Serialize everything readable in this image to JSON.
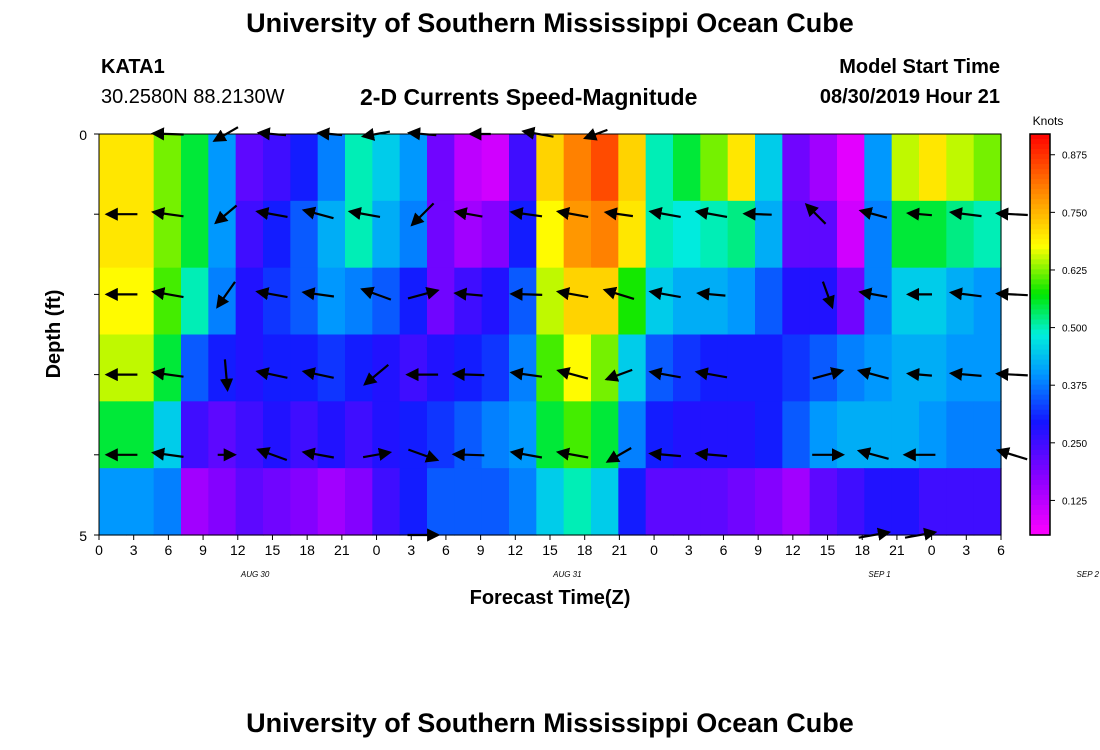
{
  "header": {
    "title": "University of Southern Mississippi Ocean Cube",
    "station": "KATA1",
    "coordinates": "30.2580N 88.2130W",
    "chart_title": "2-D Currents Speed-Magnitude",
    "model_start_label": "Model Start Time",
    "model_start_value": "08/30/2019 Hour 21"
  },
  "footer": {
    "title": "University of Southern Mississippi Ocean Cube"
  },
  "chart_data": {
    "type": "heatmap",
    "title": "2-D Currents Speed-Magnitude",
    "xlabel": "Forecast Time(Z)",
    "ylabel": "Depth (ft)",
    "x_tick_labels": [
      "0",
      "3",
      "6",
      "9",
      "12",
      "15",
      "18",
      "21",
      "0",
      "3",
      "6",
      "9",
      "12",
      "15",
      "18",
      "21",
      "0",
      "3",
      "6",
      "9",
      "12",
      "15",
      "18",
      "21",
      "0",
      "3",
      "6"
    ],
    "date_labels": [
      {
        "label": "AUG 30",
        "tick_index": 4.5
      },
      {
        "label": "AUG 31",
        "tick_index": 13.5
      },
      {
        "label": "SEP 1",
        "tick_index": 22.5
      },
      {
        "label": "SEP 2",
        "tick_index": 28.5
      }
    ],
    "y_tick_labels": [
      "0",
      "5"
    ],
    "y_range": [
      0,
      5
    ],
    "time_range_hours": [
      0,
      78
    ],
    "colorbar": {
      "unit": "Knots",
      "tick_labels": [
        "0.875",
        "0.750",
        "0.625",
        "0.500",
        "0.375",
        "0.250",
        "0.125"
      ],
      "tick_values": [
        0.875,
        0.75,
        0.625,
        0.5,
        0.375,
        0.25,
        0.125
      ],
      "range": [
        0.05,
        0.92
      ]
    },
    "depth_levels": [
      0,
      1,
      2,
      3,
      4,
      5
    ],
    "speed_knots": [
      [
        0.7,
        0.7,
        0.62,
        0.55,
        0.4,
        0.22,
        0.25,
        0.3,
        0.38,
        0.5,
        0.45,
        0.4,
        0.2,
        0.12,
        0.1,
        0.25,
        0.72,
        0.8,
        0.85,
        0.72,
        0.5,
        0.55,
        0.62,
        0.7,
        0.45,
        0.2,
        0.15,
        0.08,
        0.4,
        0.65,
        0.7,
        0.65,
        0.62
      ],
      [
        0.7,
        0.7,
        0.62,
        0.55,
        0.4,
        0.25,
        0.3,
        0.35,
        0.42,
        0.5,
        0.42,
        0.38,
        0.2,
        0.15,
        0.18,
        0.3,
        0.68,
        0.78,
        0.8,
        0.7,
        0.5,
        0.48,
        0.5,
        0.52,
        0.42,
        0.22,
        0.22,
        0.1,
        0.38,
        0.55,
        0.55,
        0.52,
        0.5
      ],
      [
        0.68,
        0.68,
        0.6,
        0.5,
        0.38,
        0.28,
        0.32,
        0.35,
        0.4,
        0.38,
        0.35,
        0.3,
        0.2,
        0.25,
        0.28,
        0.35,
        0.65,
        0.72,
        0.72,
        0.58,
        0.45,
        0.42,
        0.42,
        0.4,
        0.35,
        0.28,
        0.28,
        0.2,
        0.38,
        0.45,
        0.45,
        0.42,
        0.4
      ],
      [
        0.65,
        0.65,
        0.55,
        0.35,
        0.3,
        0.28,
        0.3,
        0.3,
        0.32,
        0.3,
        0.28,
        0.25,
        0.28,
        0.3,
        0.32,
        0.38,
        0.6,
        0.68,
        0.62,
        0.45,
        0.35,
        0.32,
        0.3,
        0.3,
        0.3,
        0.32,
        0.35,
        0.38,
        0.4,
        0.42,
        0.42,
        0.4,
        0.4
      ],
      [
        0.55,
        0.55,
        0.45,
        0.25,
        0.22,
        0.25,
        0.28,
        0.25,
        0.28,
        0.25,
        0.28,
        0.3,
        0.32,
        0.35,
        0.38,
        0.4,
        0.55,
        0.6,
        0.55,
        0.38,
        0.3,
        0.28,
        0.28,
        0.28,
        0.3,
        0.35,
        0.4,
        0.42,
        0.42,
        0.42,
        0.4,
        0.38,
        0.38
      ],
      [
        0.4,
        0.4,
        0.38,
        0.15,
        0.18,
        0.22,
        0.2,
        0.18,
        0.15,
        0.18,
        0.25,
        0.3,
        0.35,
        0.35,
        0.35,
        0.38,
        0.45,
        0.5,
        0.45,
        0.3,
        0.22,
        0.22,
        0.22,
        0.2,
        0.18,
        0.15,
        0.22,
        0.25,
        0.28,
        0.28,
        0.25,
        0.25,
        0.25
      ]
    ],
    "vectors": [
      {
        "depth": 0,
        "hour": 6,
        "dir_deg": 178,
        "len": 0.9
      },
      {
        "depth": 0,
        "hour": 11,
        "dir_deg": 210,
        "len": 0.8
      },
      {
        "depth": 0,
        "hour": 15,
        "dir_deg": 175,
        "len": 0.8
      },
      {
        "depth": 0,
        "hour": 20,
        "dir_deg": 175,
        "len": 0.7
      },
      {
        "depth": 0,
        "hour": 24,
        "dir_deg": 190,
        "len": 0.8
      },
      {
        "depth": 0,
        "hour": 28,
        "dir_deg": 175,
        "len": 0.8
      },
      {
        "depth": 0,
        "hour": 33,
        "dir_deg": 180,
        "len": 0.6
      },
      {
        "depth": 0,
        "hour": 38,
        "dir_deg": 170,
        "len": 0.9
      },
      {
        "depth": 0,
        "hour": 43,
        "dir_deg": 200,
        "len": 0.7
      },
      {
        "depth": 1,
        "hour": 2,
        "dir_deg": 180,
        "len": 0.9
      },
      {
        "depth": 1,
        "hour": 6,
        "dir_deg": 172,
        "len": 0.9
      },
      {
        "depth": 1,
        "hour": 11,
        "dir_deg": 220,
        "len": 0.8
      },
      {
        "depth": 1,
        "hour": 15,
        "dir_deg": 170,
        "len": 0.9
      },
      {
        "depth": 1,
        "hour": 19,
        "dir_deg": 165,
        "len": 0.9
      },
      {
        "depth": 1,
        "hour": 23,
        "dir_deg": 170,
        "len": 0.9
      },
      {
        "depth": 1,
        "hour": 28,
        "dir_deg": 225,
        "len": 0.9
      },
      {
        "depth": 1,
        "hour": 32,
        "dir_deg": 170,
        "len": 0.8
      },
      {
        "depth": 1,
        "hour": 37,
        "dir_deg": 172,
        "len": 0.9
      },
      {
        "depth": 1,
        "hour": 41,
        "dir_deg": 170,
        "len": 0.9
      },
      {
        "depth": 1,
        "hour": 45,
        "dir_deg": 172,
        "len": 0.8
      },
      {
        "depth": 1,
        "hour": 49,
        "dir_deg": 170,
        "len": 0.9
      },
      {
        "depth": 1,
        "hour": 53,
        "dir_deg": 170,
        "len": 0.9
      },
      {
        "depth": 1,
        "hour": 57,
        "dir_deg": 178,
        "len": 0.8
      },
      {
        "depth": 1,
        "hour": 62,
        "dir_deg": 135,
        "len": 0.8
      },
      {
        "depth": 1,
        "hour": 67,
        "dir_deg": 165,
        "len": 0.8
      },
      {
        "depth": 1,
        "hour": 71,
        "dir_deg": 175,
        "len": 0.7
      },
      {
        "depth": 1,
        "hour": 75,
        "dir_deg": 173,
        "len": 0.9
      },
      {
        "depth": 1,
        "hour": 79,
        "dir_deg": 177,
        "len": 0.9
      },
      {
        "depth": 2,
        "hour": 2,
        "dir_deg": 180,
        "len": 0.9
      },
      {
        "depth": 2,
        "hour": 6,
        "dir_deg": 170,
        "len": 0.9
      },
      {
        "depth": 2,
        "hour": 11,
        "dir_deg": 235,
        "len": 0.9
      },
      {
        "depth": 2,
        "hour": 15,
        "dir_deg": 170,
        "len": 0.9
      },
      {
        "depth": 2,
        "hour": 19,
        "dir_deg": 172,
        "len": 0.9
      },
      {
        "depth": 2,
        "hour": 24,
        "dir_deg": 160,
        "len": 0.9
      },
      {
        "depth": 2,
        "hour": 28,
        "dir_deg": 15,
        "len": 0.9
      },
      {
        "depth": 2,
        "hour": 32,
        "dir_deg": 175,
        "len": 0.8
      },
      {
        "depth": 2,
        "hour": 37,
        "dir_deg": 178,
        "len": 0.9
      },
      {
        "depth": 2,
        "hour": 41,
        "dir_deg": 170,
        "len": 0.9
      },
      {
        "depth": 2,
        "hour": 45,
        "dir_deg": 163,
        "len": 0.9
      },
      {
        "depth": 2,
        "hour": 49,
        "dir_deg": 170,
        "len": 0.9
      },
      {
        "depth": 2,
        "hour": 53,
        "dir_deg": 175,
        "len": 0.8
      },
      {
        "depth": 2,
        "hour": 63,
        "dir_deg": 290,
        "len": 0.8
      },
      {
        "depth": 2,
        "hour": 67,
        "dir_deg": 170,
        "len": 0.8
      },
      {
        "depth": 2,
        "hour": 71,
        "dir_deg": 180,
        "len": 0.7
      },
      {
        "depth": 2,
        "hour": 75,
        "dir_deg": 173,
        "len": 0.9
      },
      {
        "depth": 2,
        "hour": 79,
        "dir_deg": 177,
        "len": 0.9
      },
      {
        "depth": 3,
        "hour": 2,
        "dir_deg": 180,
        "len": 0.9
      },
      {
        "depth": 3,
        "hour": 6,
        "dir_deg": 172,
        "len": 0.9
      },
      {
        "depth": 3,
        "hour": 11,
        "dir_deg": 275,
        "len": 0.9
      },
      {
        "depth": 3,
        "hour": 15,
        "dir_deg": 168,
        "len": 0.9
      },
      {
        "depth": 3,
        "hour": 19,
        "dir_deg": 168,
        "len": 0.9
      },
      {
        "depth": 3,
        "hour": 24,
        "dir_deg": 220,
        "len": 0.9
      },
      {
        "depth": 3,
        "hour": 28,
        "dir_deg": 180,
        "len": 0.9
      },
      {
        "depth": 3,
        "hour": 32,
        "dir_deg": 178,
        "len": 0.9
      },
      {
        "depth": 3,
        "hour": 37,
        "dir_deg": 172,
        "len": 0.9
      },
      {
        "depth": 3,
        "hour": 41,
        "dir_deg": 165,
        "len": 0.9
      },
      {
        "depth": 3,
        "hour": 45,
        "dir_deg": 200,
        "len": 0.8
      },
      {
        "depth": 3,
        "hour": 49,
        "dir_deg": 170,
        "len": 0.9
      },
      {
        "depth": 3,
        "hour": 53,
        "dir_deg": 170,
        "len": 0.9
      },
      {
        "depth": 3,
        "hour": 63,
        "dir_deg": 15,
        "len": 0.9
      },
      {
        "depth": 3,
        "hour": 67,
        "dir_deg": 165,
        "len": 0.9
      },
      {
        "depth": 3,
        "hour": 71,
        "dir_deg": 175,
        "len": 0.7
      },
      {
        "depth": 3,
        "hour": 75,
        "dir_deg": 175,
        "len": 0.9
      },
      {
        "depth": 3,
        "hour": 79,
        "dir_deg": 177,
        "len": 0.9
      },
      {
        "depth": 4,
        "hour": 2,
        "dir_deg": 180,
        "len": 0.9
      },
      {
        "depth": 4,
        "hour": 6,
        "dir_deg": 172,
        "len": 0.9
      },
      {
        "depth": 4,
        "hour": 11,
        "dir_deg": 0,
        "len": 0.5
      },
      {
        "depth": 4,
        "hour": 15,
        "dir_deg": 160,
        "len": 0.9
      },
      {
        "depth": 4,
        "hour": 19,
        "dir_deg": 170,
        "len": 0.9
      },
      {
        "depth": 4,
        "hour": 24,
        "dir_deg": 10,
        "len": 0.8
      },
      {
        "depth": 4,
        "hour": 28,
        "dir_deg": 340,
        "len": 0.9
      },
      {
        "depth": 4,
        "hour": 32,
        "dir_deg": 178,
        "len": 0.9
      },
      {
        "depth": 4,
        "hour": 37,
        "dir_deg": 170,
        "len": 0.9
      },
      {
        "depth": 4,
        "hour": 41,
        "dir_deg": 170,
        "len": 0.9
      },
      {
        "depth": 4,
        "hour": 45,
        "dir_deg": 210,
        "len": 0.8
      },
      {
        "depth": 4,
        "hour": 49,
        "dir_deg": 175,
        "len": 0.9
      },
      {
        "depth": 4,
        "hour": 53,
        "dir_deg": 175,
        "len": 0.9
      },
      {
        "depth": 4,
        "hour": 63,
        "dir_deg": 0,
        "len": 0.9
      },
      {
        "depth": 4,
        "hour": 67,
        "dir_deg": 165,
        "len": 0.9
      },
      {
        "depth": 4,
        "hour": 71,
        "dir_deg": 180,
        "len": 0.9
      },
      {
        "depth": 4,
        "hour": 79,
        "dir_deg": 163,
        "len": 0.9
      },
      {
        "depth": 5,
        "hour": 28,
        "dir_deg": 0,
        "len": 0.9
      },
      {
        "depth": 5,
        "hour": 67,
        "dir_deg": 10,
        "len": 0.9
      },
      {
        "depth": 5,
        "hour": 71,
        "dir_deg": 10,
        "len": 0.9
      }
    ]
  }
}
